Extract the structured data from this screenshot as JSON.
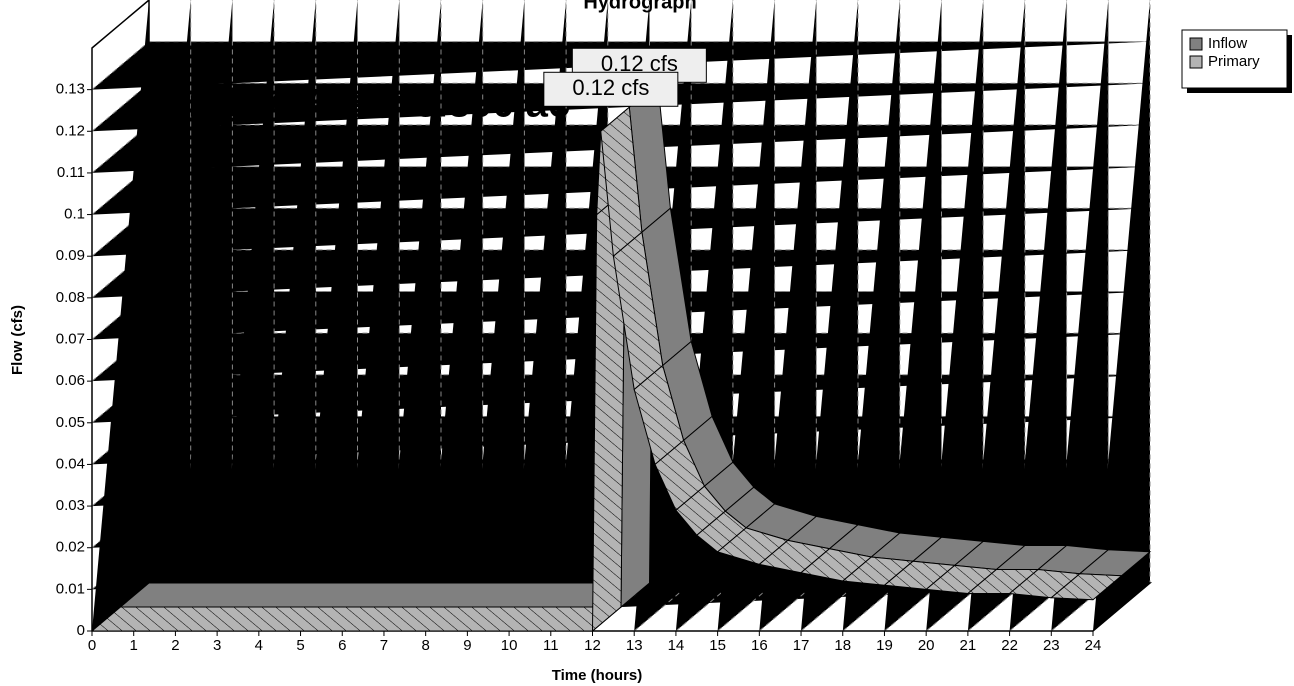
{
  "chart_data": {
    "type": "ribbon3d",
    "title": "Hydrograph",
    "annotation": "Inflow Area=3.890 ac",
    "x_label": "Time  (hours)",
    "y_label": "Flow  (cfs)",
    "x": [
      0,
      12,
      12.1,
      12.2,
      12.5,
      13,
      13.5,
      14,
      14.5,
      15,
      16,
      17,
      18,
      19,
      20,
      21,
      22,
      23,
      24
    ],
    "series": [
      {
        "name": "Inflow",
        "color": "#808080",
        "values": [
          0,
          0,
          0.1,
          0.12,
          0.09,
          0.058,
          0.04,
          0.029,
          0.023,
          0.019,
          0.016,
          0.014,
          0.012,
          0.011,
          0.01,
          0.009,
          0.009,
          0.008,
          0.0075
        ],
        "value_labels": [
          null,
          null,
          null,
          "0.12 cfs",
          null,
          null,
          null,
          null,
          null,
          null,
          null,
          null,
          null,
          null,
          null,
          null,
          null,
          null,
          null
        ]
      },
      {
        "name": "Primary",
        "color": "#b4b4b4",
        "values": [
          0,
          0,
          0.1,
          0.12,
          0.09,
          0.058,
          0.04,
          0.029,
          0.023,
          0.019,
          0.016,
          0.014,
          0.012,
          0.011,
          0.01,
          0.009,
          0.009,
          0.008,
          0.0075
        ],
        "value_labels": [
          null,
          null,
          null,
          "0.12 cfs",
          null,
          null,
          null,
          null,
          null,
          null,
          null,
          null,
          null,
          null,
          null,
          null,
          null,
          null,
          null
        ]
      }
    ],
    "xlim": [
      0,
      24
    ],
    "xticks": [
      0,
      1,
      2,
      3,
      4,
      5,
      6,
      7,
      8,
      9,
      10,
      11,
      12,
      13,
      14,
      15,
      16,
      17,
      18,
      19,
      20,
      21,
      22,
      23,
      24
    ],
    "ylim": [
      0,
      0.14
    ],
    "yticks": [
      0,
      0.01,
      0.02,
      0.03,
      0.04,
      0.05,
      0.06,
      0.07,
      0.08,
      0.09,
      0.1,
      0.11,
      0.12,
      0.13
    ],
    "grid": true,
    "legend": "top-right"
  }
}
